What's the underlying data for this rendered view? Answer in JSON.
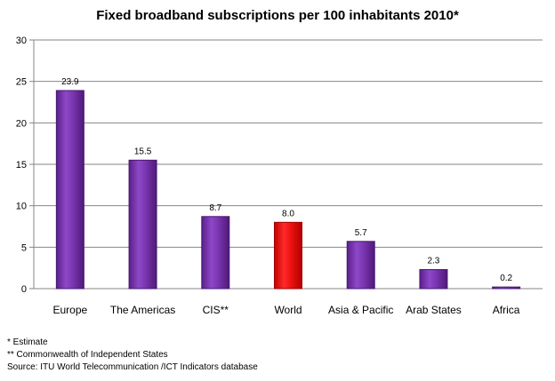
{
  "chart_data": {
    "type": "bar",
    "title": "Fixed broadband subscriptions per 100 inhabitants 2010*",
    "categories": [
      "Europe",
      "The Americas",
      "CIS**",
      "World",
      "Asia & Pacific",
      "Arab States",
      "Africa"
    ],
    "values": [
      23.9,
      15.5,
      8.7,
      8.0,
      5.7,
      2.3,
      0.2
    ],
    "value_labels": [
      "23.9",
      "15.5",
      "8.7",
      "8.0",
      "5.7",
      "2.3",
      "0.2"
    ],
    "colors": [
      "#7a35b0",
      "#7a35b0",
      "#7a35b0",
      "#ee1111",
      "#7a35b0",
      "#7a35b0",
      "#7a35b0"
    ],
    "ylim": [
      0,
      30
    ],
    "yticks": [
      0,
      5,
      10,
      15,
      20,
      25,
      30
    ],
    "xlabel": "",
    "ylabel": "",
    "grid": true,
    "legend": "none"
  },
  "notes": {
    "estimate": "* Estimate",
    "cis": "** Commonwealth of Independent  States",
    "source": "Source:  ITU World Telecommunication /ICT Indicators database"
  }
}
